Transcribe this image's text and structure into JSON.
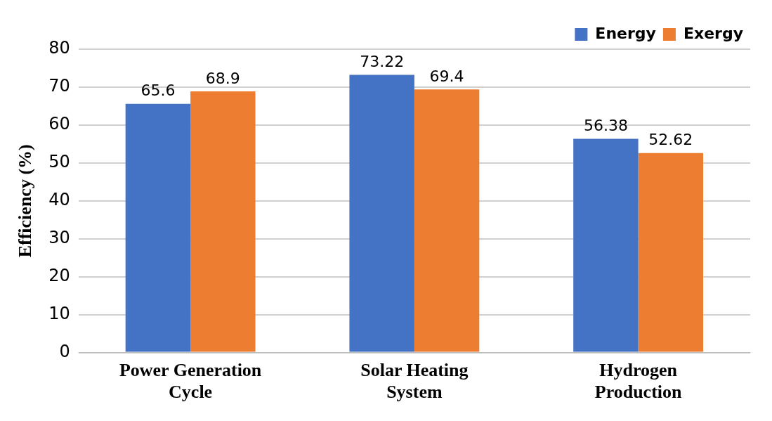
{
  "chart_data": {
    "type": "bar",
    "ylabel": "Efficiency (%)",
    "categories": [
      "Power Generation Cycle",
      "Solar Heating System",
      "Hydrogen Production"
    ],
    "series": [
      {
        "name": "Energy",
        "color": "#4472c4",
        "values": [
          65.6,
          73.22,
          56.38
        ]
      },
      {
        "name": "Exergy",
        "color": "#ed7d31",
        "values": [
          68.9,
          69.4,
          52.62
        ]
      }
    ],
    "ylim": [
      0,
      80
    ],
    "yticks": [
      0,
      10,
      20,
      30,
      40,
      50,
      60,
      70,
      80
    ],
    "grid": "y",
    "legend": "top right",
    "data_labels": true
  }
}
